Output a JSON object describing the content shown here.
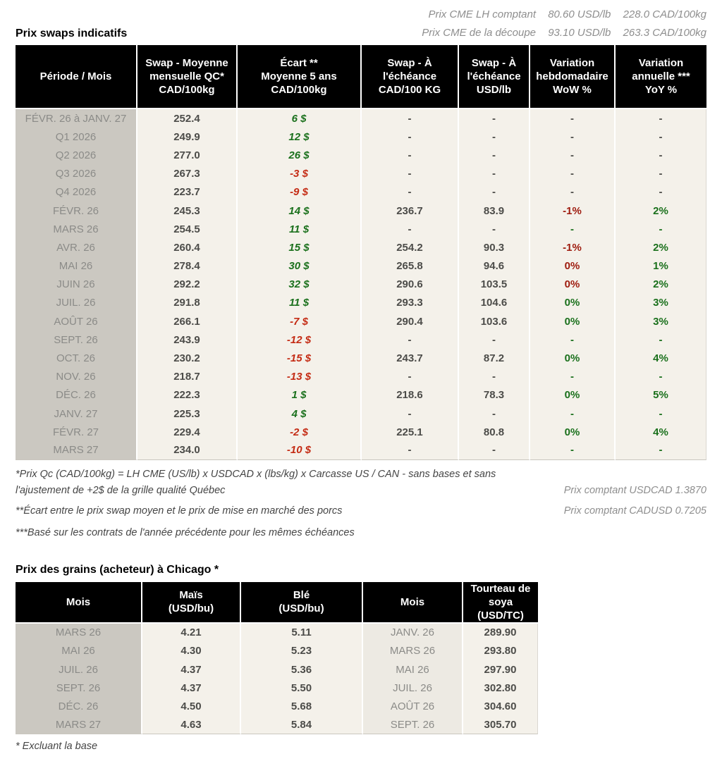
{
  "colors": {
    "green": "#1a701c",
    "red": "#c42b14",
    "red-dark": "#9e1b0e",
    "dark": "#4c4c49",
    "gray": "#8b8b88",
    "header-bg": "#000000",
    "header-text": "#ffffff",
    "col-month-bg": "#cbc8c1",
    "body-bg": "#f4f1ea",
    "month2-bg": "#edeae3",
    "cme-gray": "#8e8e8e"
  },
  "top": {
    "cme_lines": [
      {
        "label": "Prix CME LH comptant",
        "usd": "80.60 USD/lb",
        "cad": "228.0 CAD/100kg"
      },
      {
        "label": "Prix CME de la découpe",
        "usd": "93.10 USD/lb",
        "cad": "263.3 CAD/100kg"
      }
    ]
  },
  "swaps_table": {
    "title": "Prix swaps indicatifs",
    "headers": [
      "Période / Mois",
      "Swap - Moyenne\nmensuelle QC*\nCAD/100kg",
      "Écart **\nMoyenne 5 ans\nCAD/100kg",
      "Swap - À\nl'échéance\nCAD/100 KG",
      "Swap - À\nl'échéance\nUSD/lb",
      "Variation\nhebdomadaire\nWoW %",
      "Variation\nannuelle ***\nYoY %"
    ],
    "rows": [
      {
        "period": "FÉVR. 26 à JANV. 27",
        "swap_avg": "252.4",
        "ecart": "6 $",
        "ecart_color": "green",
        "settle_cad": "-",
        "settle_usd": "-",
        "wow": "-",
        "wow_color": "dark",
        "yoy": "-",
        "yoy_color": "dark"
      },
      {
        "period": "Q1 2026",
        "swap_avg": "249.9",
        "ecart": "12 $",
        "ecart_color": "green",
        "settle_cad": "-",
        "settle_usd": "-",
        "wow": "-",
        "wow_color": "dark",
        "yoy": "-",
        "yoy_color": "dark"
      },
      {
        "period": "Q2 2026",
        "swap_avg": "277.0",
        "ecart": "26 $",
        "ecart_color": "green",
        "settle_cad": "-",
        "settle_usd": "-",
        "wow": "-",
        "wow_color": "dark",
        "yoy": "-",
        "yoy_color": "dark"
      },
      {
        "period": "Q3 2026",
        "swap_avg": "267.3",
        "ecart": "-3 $",
        "ecart_color": "red",
        "settle_cad": "-",
        "settle_usd": "-",
        "wow": "-",
        "wow_color": "dark",
        "yoy": "-",
        "yoy_color": "dark"
      },
      {
        "period": "Q4 2026",
        "swap_avg": "223.7",
        "ecart": "-9 $",
        "ecart_color": "red",
        "settle_cad": "-",
        "settle_usd": "-",
        "wow": "-",
        "wow_color": "dark",
        "yoy": "-",
        "yoy_color": "dark"
      },
      {
        "period": "FÉVR. 26",
        "swap_avg": "245.3",
        "ecart": "14 $",
        "ecart_color": "green",
        "settle_cad": "236.7",
        "settle_usd": "83.9",
        "wow": "-1%",
        "wow_color": "red-dark",
        "yoy": "2%",
        "yoy_color": "green"
      },
      {
        "period": "MARS 26",
        "swap_avg": "254.5",
        "ecart": "11 $",
        "ecart_color": "green",
        "settle_cad": "-",
        "settle_usd": "-",
        "wow": "-",
        "wow_color": "green",
        "yoy": "-",
        "yoy_color": "green"
      },
      {
        "period": "AVR. 26",
        "swap_avg": "260.4",
        "ecart": "15 $",
        "ecart_color": "green",
        "settle_cad": "254.2",
        "settle_usd": "90.3",
        "wow": "-1%",
        "wow_color": "red-dark",
        "yoy": "2%",
        "yoy_color": "green"
      },
      {
        "period": "MAI 26",
        "swap_avg": "278.4",
        "ecart": "30 $",
        "ecart_color": "green",
        "settle_cad": "265.8",
        "settle_usd": "94.6",
        "wow": "0%",
        "wow_color": "red-dark",
        "yoy": "1%",
        "yoy_color": "green"
      },
      {
        "period": "JUIN 26",
        "swap_avg": "292.2",
        "ecart": "32 $",
        "ecart_color": "green",
        "settle_cad": "290.6",
        "settle_usd": "103.5",
        "wow": "0%",
        "wow_color": "red-dark",
        "yoy": "2%",
        "yoy_color": "green"
      },
      {
        "period": "JUIL. 26",
        "swap_avg": "291.8",
        "ecart": "11 $",
        "ecart_color": "green",
        "settle_cad": "293.3",
        "settle_usd": "104.6",
        "wow": "0%",
        "wow_color": "green",
        "yoy": "3%",
        "yoy_color": "green"
      },
      {
        "period": "AOÛT 26",
        "swap_avg": "266.1",
        "ecart": "-7 $",
        "ecart_color": "red",
        "settle_cad": "290.4",
        "settle_usd": "103.6",
        "wow": "0%",
        "wow_color": "green",
        "yoy": "3%",
        "yoy_color": "green"
      },
      {
        "period": "SEPT. 26",
        "swap_avg": "243.9",
        "ecart": "-12 $",
        "ecart_color": "red",
        "settle_cad": "-",
        "settle_usd": "-",
        "wow": "-",
        "wow_color": "green",
        "yoy": "-",
        "yoy_color": "green"
      },
      {
        "period": "OCT. 26",
        "swap_avg": "230.2",
        "ecart": "-15 $",
        "ecart_color": "red",
        "settle_cad": "243.7",
        "settle_usd": "87.2",
        "wow": "0%",
        "wow_color": "green",
        "yoy": "4%",
        "yoy_color": "green"
      },
      {
        "period": "NOV. 26",
        "swap_avg": "218.7",
        "ecart": "-13 $",
        "ecart_color": "red",
        "settle_cad": "-",
        "settle_usd": "-",
        "wow": "-",
        "wow_color": "green",
        "yoy": "-",
        "yoy_color": "green"
      },
      {
        "period": "DÉC. 26",
        "swap_avg": "222.3",
        "ecart": "1 $",
        "ecart_color": "green",
        "settle_cad": "218.6",
        "settle_usd": "78.3",
        "wow": "0%",
        "wow_color": "green",
        "yoy": "5%",
        "yoy_color": "green"
      },
      {
        "period": "JANV. 27",
        "swap_avg": "225.3",
        "ecart": "4 $",
        "ecart_color": "green",
        "settle_cad": "-",
        "settle_usd": "-",
        "wow": "-",
        "wow_color": "green",
        "yoy": "-",
        "yoy_color": "green"
      },
      {
        "period": "FÉVR. 27",
        "swap_avg": "229.4",
        "ecart": "-2 $",
        "ecart_color": "red",
        "settle_cad": "225.1",
        "settle_usd": "80.8",
        "wow": "0%",
        "wow_color": "green",
        "yoy": "4%",
        "yoy_color": "green"
      },
      {
        "period": "MARS 27",
        "swap_avg": "234.0",
        "ecart": "-10 $",
        "ecart_color": "red",
        "settle_cad": "-",
        "settle_usd": "-",
        "wow": "-",
        "wow_color": "green",
        "yoy": "-",
        "yoy_color": "green"
      }
    ]
  },
  "footnotes": {
    "note1": "*Prix Qc (CAD/100kg) = LH CME (US/lb) x USDCAD x (lbs/kg) x Carcasse US / CAN - sans bases et sans l'ajustement de +2$ de la grille qualité Québec",
    "note2": "**Écart entre le prix swap moyen et le prix de mise en marché des porcs",
    "note3": "***Basé sur les contrats de l'année précédente pour les mêmes échéances",
    "fx1": "Prix comptant USDCAD 1.3870",
    "fx2": "Prix comptant CADUSD 0.7205"
  },
  "grains_table": {
    "title": "Prix des grains (acheteur) à Chicago *",
    "headers": [
      "Mois",
      "Maïs\n(USD/bu)",
      "Blé\n(USD/bu)",
      "Mois",
      "Tourteau de\nsoya\n(USD/TC)"
    ],
    "rows": [
      {
        "month_a": "MARS 26",
        "corn": "4.21",
        "wheat": "5.11",
        "month_b": "JANV. 26",
        "soymeal": "289.90"
      },
      {
        "month_a": "MAI 26",
        "corn": "4.30",
        "wheat": "5.23",
        "month_b": "MARS 26",
        "soymeal": "293.80"
      },
      {
        "month_a": "JUIL. 26",
        "corn": "4.37",
        "wheat": "5.36",
        "month_b": "MAI 26",
        "soymeal": "297.90"
      },
      {
        "month_a": "SEPT. 26",
        "corn": "4.37",
        "wheat": "5.50",
        "month_b": "JUIL. 26",
        "soymeal": "302.80"
      },
      {
        "month_a": "DÉC. 26",
        "corn": "4.50",
        "wheat": "5.68",
        "month_b": "AOÛT 26",
        "soymeal": "304.60"
      },
      {
        "month_a": "MARS 27",
        "corn": "4.63",
        "wheat": "5.84",
        "month_b": "SEPT. 26",
        "soymeal": "305.70"
      }
    ],
    "footnote": "* Excluant la base"
  }
}
